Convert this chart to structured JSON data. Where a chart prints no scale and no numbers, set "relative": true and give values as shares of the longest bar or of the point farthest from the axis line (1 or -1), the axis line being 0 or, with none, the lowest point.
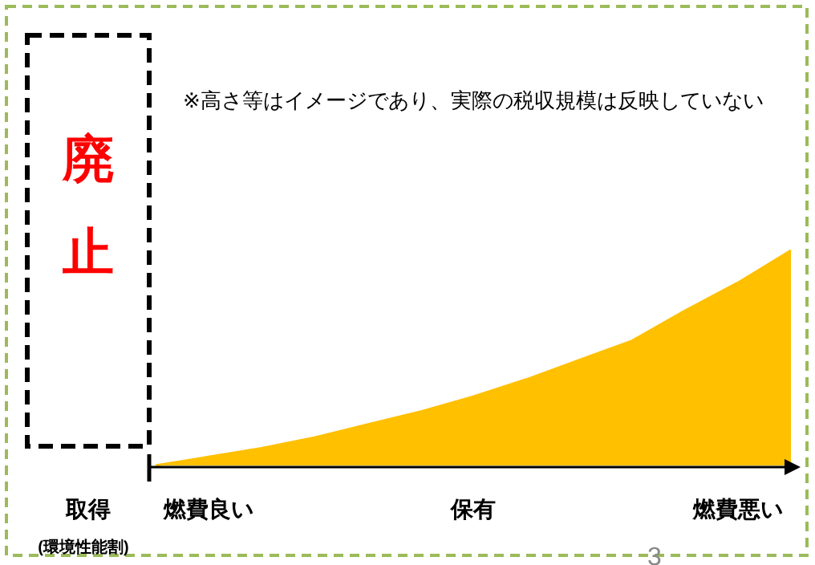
{
  "chart_data": {
    "type": "area",
    "relative": true,
    "color": "#ffc000",
    "categories": [
      null,
      "燃費良い",
      null,
      null,
      null,
      null,
      "保有",
      null,
      null,
      null,
      null,
      "燃費悪い",
      null
    ],
    "values": [
      0,
      0.04,
      0.08,
      0.13,
      0.19,
      0.25,
      0.32,
      0.4,
      0.49,
      0.58,
      0.72,
      0.85,
      1
    ],
    "annotations": [
      "廃止",
      "取得",
      "(環境性能割)",
      "※高さ等はイメージであり、実際の税収規模は反映していない",
      "3"
    ]
  }
}
